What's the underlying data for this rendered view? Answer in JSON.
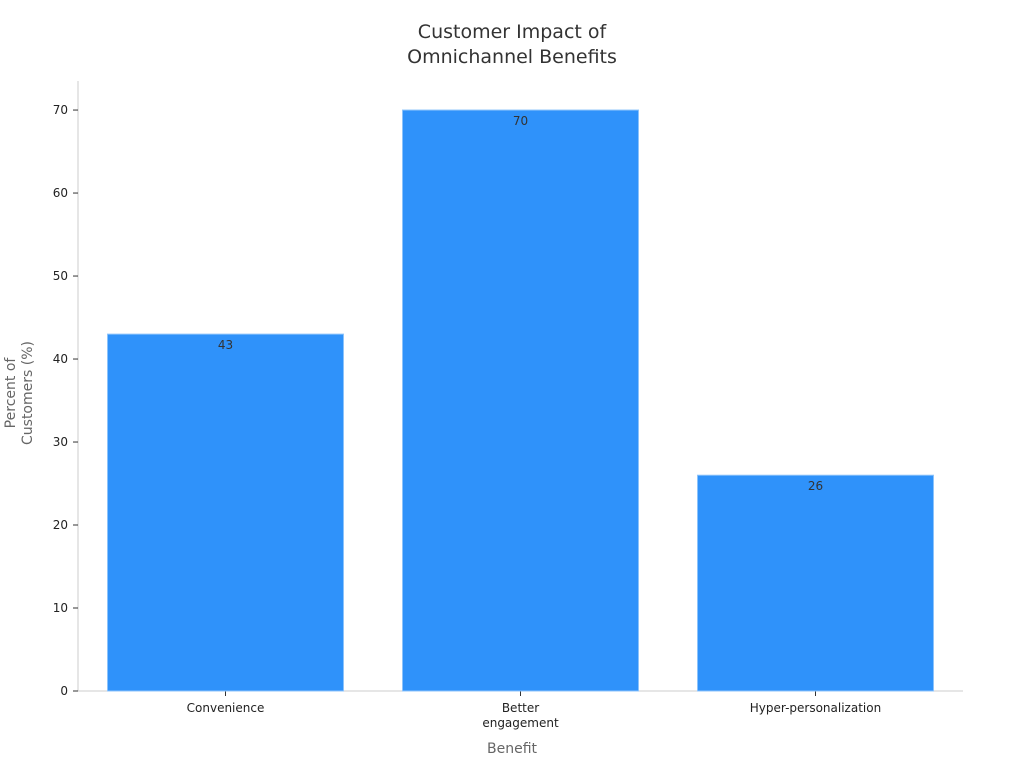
{
  "chart_data": {
    "type": "bar",
    "title": "Customer Impact of Omnichannel Benefits",
    "x_label": "Benefit",
    "y_label": "Percent of Customers (%)",
    "categories": [
      "Convenience",
      "Better engagement",
      "Hyper-personalization"
    ],
    "values": [
      43,
      70,
      26
    ],
    "color": "#2f92fa",
    "ylim": [
      0,
      73.5
    ],
    "yticks": [
      0,
      10,
      20,
      30,
      40,
      50,
      60,
      70
    ],
    "grid": false
  }
}
